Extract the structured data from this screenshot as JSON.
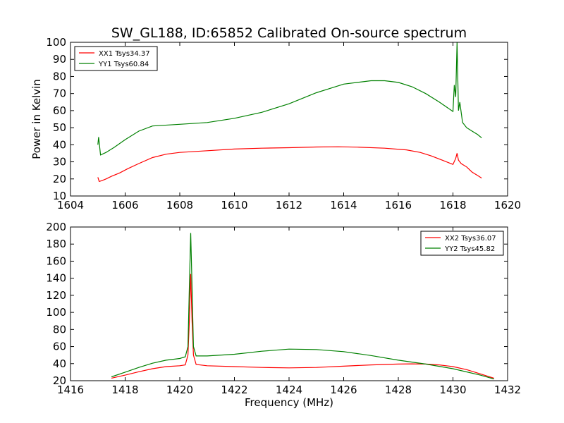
{
  "title": "SW_GL188, ID:65852 Calibrated On-source spectrum",
  "chart_data": [
    {
      "type": "line",
      "title": "SW_GL188, ID:65852 Calibrated On-source spectrum",
      "xlabel": "",
      "ylabel": "Power in Kelvin",
      "xlim": [
        1604,
        1620
      ],
      "ylim": [
        10,
        100
      ],
      "xticks": [
        "1604",
        "1606",
        "1608",
        "1610",
        "1612",
        "1614",
        "1616",
        "1618",
        "1620"
      ],
      "yticks": [
        "10",
        "20",
        "30",
        "40",
        "50",
        "60",
        "70",
        "80",
        "90",
        "100"
      ],
      "grid": false,
      "legend_position": "top-left",
      "series": [
        {
          "name": "XX1 Tsys34.37",
          "color": "#ff0000",
          "x": [
            1605.0,
            1605.05,
            1605.15,
            1605.3,
            1605.5,
            1605.8,
            1606.1,
            1606.5,
            1607.0,
            1607.5,
            1608.0,
            1609.0,
            1610.0,
            1611.0,
            1612.0,
            1613.0,
            1613.8,
            1614.5,
            1615.5,
            1616.3,
            1616.8,
            1617.2,
            1617.6,
            1618.0,
            1618.1,
            1618.15,
            1618.2,
            1618.3,
            1618.5,
            1618.7,
            1618.9,
            1619.05
          ],
          "y": [
            21,
            18.5,
            19,
            20,
            21.5,
            23.5,
            26,
            29,
            32.5,
            34.5,
            35.5,
            36.5,
            37.5,
            38,
            38.3,
            38.7,
            38.8,
            38.6,
            38,
            37,
            35.5,
            33.5,
            31,
            28.5,
            32,
            35,
            31,
            29,
            27,
            24,
            22,
            20.5
          ]
        },
        {
          "name": "YY1 Tsys60.84",
          "color": "#008000",
          "x": [
            1605.0,
            1605.03,
            1605.1,
            1605.3,
            1605.6,
            1606.0,
            1606.5,
            1607.0,
            1608.0,
            1609.0,
            1610.0,
            1611.0,
            1612.0,
            1613.0,
            1614.0,
            1615.0,
            1615.5,
            1616.0,
            1616.5,
            1617.0,
            1617.5,
            1618.0,
            1618.05,
            1618.1,
            1618.15,
            1618.2,
            1618.25,
            1618.35,
            1618.5,
            1618.7,
            1618.9,
            1619.05
          ],
          "y": [
            40,
            44.5,
            34,
            35.5,
            38.5,
            43,
            48,
            51,
            52,
            53,
            55.5,
            59,
            64,
            70.5,
            75.5,
            77.5,
            77.5,
            76.5,
            74,
            70,
            65,
            59.5,
            75,
            68,
            100,
            60,
            65,
            53,
            50,
            48,
            46,
            44
          ]
        }
      ]
    },
    {
      "type": "line",
      "title": "",
      "xlabel": "Frequency (MHz)",
      "ylabel": "",
      "xlim": [
        1416,
        1432
      ],
      "ylim": [
        20,
        200
      ],
      "xticks": [
        "1416",
        "1418",
        "1420",
        "1422",
        "1424",
        "1426",
        "1428",
        "1430",
        "1432"
      ],
      "yticks": [
        "20",
        "40",
        "60",
        "80",
        "100",
        "120",
        "140",
        "160",
        "180",
        "200"
      ],
      "grid": false,
      "legend_position": "top-right",
      "series": [
        {
          "name": "XX2 Tsys36.07",
          "color": "#ff0000",
          "x": [
            1417.5,
            1418.0,
            1418.5,
            1419.0,
            1419.5,
            1420.0,
            1420.2,
            1420.3,
            1420.35,
            1420.4,
            1420.45,
            1420.5,
            1420.6,
            1421.0,
            1422.0,
            1423.0,
            1424.0,
            1425.0,
            1426.0,
            1427.0,
            1428.0,
            1428.5,
            1429.0,
            1429.5,
            1430.0,
            1430.5,
            1431.0,
            1431.5
          ],
          "y": [
            23,
            26.5,
            30.5,
            34,
            36.5,
            37.5,
            38.5,
            50,
            90,
            145,
            90,
            50,
            39,
            37.5,
            36.5,
            35.5,
            35,
            35.5,
            37,
            38.5,
            39.5,
            39.7,
            39.5,
            38.5,
            36.5,
            33,
            28,
            23
          ]
        },
        {
          "name": "YY2 Tsys45.82",
          "color": "#008000",
          "x": [
            1417.5,
            1418.0,
            1418.5,
            1419.0,
            1419.5,
            1420.0,
            1420.2,
            1420.3,
            1420.35,
            1420.4,
            1420.45,
            1420.5,
            1420.6,
            1421.0,
            1422.0,
            1423.0,
            1424.0,
            1425.0,
            1426.0,
            1427.0,
            1428.0,
            1429.0,
            1430.0,
            1431.0,
            1431.5
          ],
          "y": [
            24.5,
            30,
            35.5,
            40.5,
            44,
            46,
            48,
            60,
            130,
            193,
            130,
            60,
            49,
            49,
            51,
            54.5,
            57,
            56.5,
            54,
            49.5,
            44,
            39.5,
            34,
            26.5,
            22
          ]
        }
      ]
    }
  ]
}
